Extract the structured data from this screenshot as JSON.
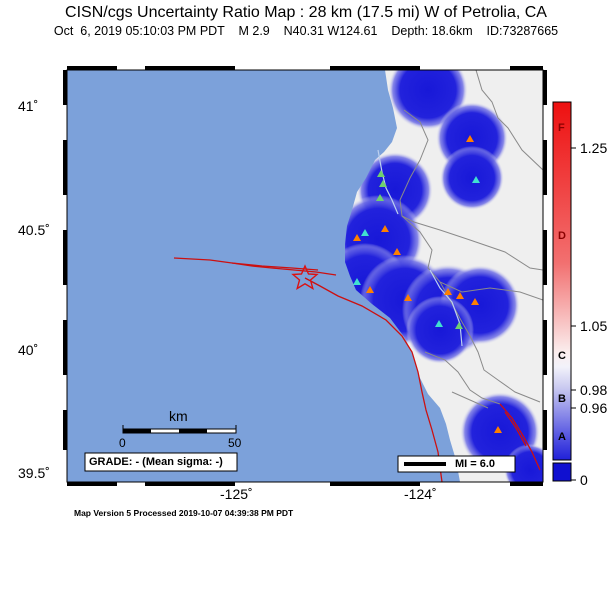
{
  "header": {
    "title": "CISN/cgs Uncertainty Ratio Map : 28 km (17.5 mi) W of Petrolia, CA",
    "subtitle": "Oct  6, 2019 05:10:03 PM PDT    M 2.9    N40.31 W124.61    Depth: 18.6km    ID:73287665"
  },
  "map": {
    "lat_ticks": [
      "41˚",
      "40.5˚",
      "40˚",
      "39.5˚"
    ],
    "lon_ticks": [
      "-125˚",
      "-124˚"
    ],
    "scale_bar": {
      "unit": "km",
      "min_label": "0",
      "max_label": "50"
    },
    "grade_text": "GRADE: - (Mean sigma: -)",
    "mi_legend_label": "MI = 6.0",
    "colors": {
      "ocean": "#7ca1da",
      "land": "#efefef",
      "high_uncertainty": "#2020d8",
      "fault": "#cc1010"
    }
  },
  "colorbar": {
    "letters": [
      "F",
      "D",
      "C",
      "B",
      "A"
    ],
    "values": [
      "1.25",
      "1.05",
      "0.98",
      "0.96",
      "0"
    ]
  },
  "footer": {
    "text": "Map Version 5 Processed 2019-10-07 04:39:38 PM PDT"
  }
}
